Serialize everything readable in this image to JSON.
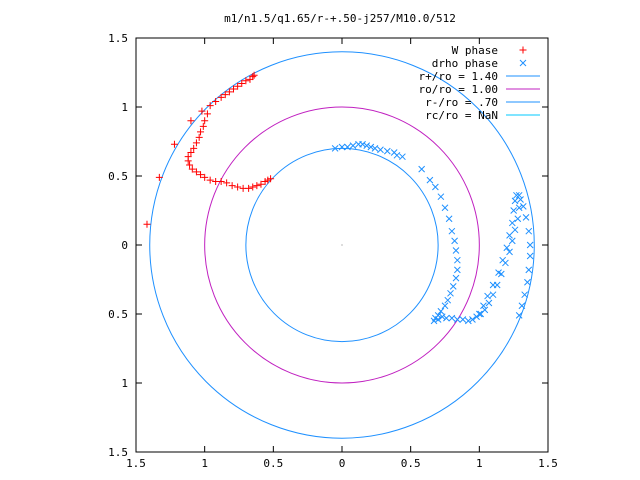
{
  "chart_data": {
    "type": "scatter",
    "title": "m1/n1.5/q1.65/r-+.50-j257/M10.0/512",
    "xlim": [
      -1.5,
      1.5
    ],
    "ylim": [
      -1.5,
      1.5
    ],
    "x_ticks": [
      -1.5,
      -1,
      -0.5,
      0,
      0.5,
      1,
      1.5
    ],
    "y_ticks": [
      -1.5,
      -1,
      -0.5,
      0,
      0.5,
      1,
      1.5
    ],
    "x_tick_labels": [
      "1.5",
      "1",
      "0.5",
      "0",
      "0.5",
      "1",
      "1.5"
    ],
    "y_tick_labels": [
      "1.5",
      "1",
      "0.5",
      "0",
      "0.5",
      "1",
      "1.5"
    ],
    "grid": false,
    "legend_position": "top-right",
    "legend": [
      {
        "label": "W phase",
        "marker": "+",
        "color": "#ff0000"
      },
      {
        "label": "drho phase",
        "marker": "x",
        "color": "#1e90ff"
      },
      {
        "label": "r+/ro = 1.40",
        "marker": "line",
        "color": "#1e90ff"
      },
      {
        "label": "ro/ro = 1.00",
        "marker": "line",
        "color": "#c020c0"
      },
      {
        "label": "r-/ro =  .70",
        "marker": "line",
        "color": "#1e90ff"
      },
      {
        "label": "rc/ro = NaN",
        "marker": "line",
        "color": "#00c8ff"
      }
    ],
    "circles": [
      {
        "name": "r+/ro = 1.40",
        "radius": 1.4,
        "color": "#1e90ff"
      },
      {
        "name": "ro/ro = 1.00",
        "radius": 1.0,
        "color": "#c020c0"
      },
      {
        "name": "r-/ro =  .70",
        "radius": 0.7,
        "color": "#1e90ff"
      }
    ],
    "series": [
      {
        "name": "W phase",
        "marker": "+",
        "color": "#ff0000",
        "points": [
          [
            -1.42,
            0.15
          ],
          [
            -1.33,
            0.49
          ],
          [
            -1.22,
            0.73
          ],
          [
            -1.1,
            0.9
          ],
          [
            -1.02,
            0.97
          ],
          [
            -0.96,
            1.01
          ],
          [
            -0.92,
            1.04
          ],
          [
            -0.88,
            1.07
          ],
          [
            -0.85,
            1.09
          ],
          [
            -0.82,
            1.11
          ],
          [
            -0.79,
            1.13
          ],
          [
            -0.76,
            1.15
          ],
          [
            -0.73,
            1.17
          ],
          [
            -0.7,
            1.19
          ],
          [
            -0.67,
            1.2
          ],
          [
            -0.65,
            1.22
          ],
          [
            -0.64,
            1.23
          ],
          [
            -0.98,
            0.95
          ],
          [
            -1.0,
            0.9
          ],
          [
            -1.01,
            0.86
          ],
          [
            -1.03,
            0.82
          ],
          [
            -1.04,
            0.78
          ],
          [
            -1.06,
            0.74
          ],
          [
            -1.08,
            0.7
          ],
          [
            -1.1,
            0.67
          ],
          [
            -1.12,
            0.64
          ],
          [
            -1.12,
            0.61
          ],
          [
            -1.11,
            0.58
          ],
          [
            -1.09,
            0.55
          ],
          [
            -1.06,
            0.53
          ],
          [
            -1.03,
            0.51
          ],
          [
            -1.0,
            0.49
          ],
          [
            -0.96,
            0.47
          ],
          [
            -0.92,
            0.46
          ],
          [
            -0.88,
            0.46
          ],
          [
            -0.84,
            0.45
          ],
          [
            -0.8,
            0.43
          ],
          [
            -0.76,
            0.42
          ],
          [
            -0.72,
            0.41
          ],
          [
            -0.68,
            0.41
          ],
          [
            -0.65,
            0.42
          ],
          [
            -0.62,
            0.43
          ],
          [
            -0.59,
            0.44
          ],
          [
            -0.56,
            0.46
          ],
          [
            -0.54,
            0.47
          ],
          [
            -0.52,
            0.48
          ]
        ]
      },
      {
        "name": "drho phase",
        "marker": "x",
        "color": "#1e90ff",
        "points": [
          [
            -0.05,
            0.7
          ],
          [
            0.0,
            0.71
          ],
          [
            0.04,
            0.71
          ],
          [
            0.08,
            0.72
          ],
          [
            0.12,
            0.73
          ],
          [
            0.15,
            0.73
          ],
          [
            0.18,
            0.72
          ],
          [
            0.21,
            0.71
          ],
          [
            0.24,
            0.7
          ],
          [
            0.28,
            0.69
          ],
          [
            0.33,
            0.68
          ],
          [
            0.38,
            0.67
          ],
          [
            0.4,
            0.65
          ],
          [
            0.44,
            0.64
          ],
          [
            0.58,
            0.55
          ],
          [
            0.64,
            0.47
          ],
          [
            0.68,
            0.42
          ],
          [
            0.72,
            0.35
          ],
          [
            0.75,
            0.27
          ],
          [
            0.78,
            0.19
          ],
          [
            0.8,
            0.1
          ],
          [
            0.82,
            0.03
          ],
          [
            0.83,
            -0.04
          ],
          [
            0.84,
            -0.11
          ],
          [
            0.84,
            -0.18
          ],
          [
            0.83,
            -0.24
          ],
          [
            0.81,
            -0.3
          ],
          [
            0.79,
            -0.35
          ],
          [
            0.77,
            -0.4
          ],
          [
            0.75,
            -0.44
          ],
          [
            0.72,
            -0.48
          ],
          [
            0.7,
            -0.51
          ],
          [
            0.68,
            -0.53
          ],
          [
            0.67,
            -0.55
          ],
          [
            0.7,
            -0.54
          ],
          [
            0.73,
            -0.52
          ],
          [
            0.76,
            -0.53
          ],
          [
            0.8,
            -0.53
          ],
          [
            0.84,
            -0.54
          ],
          [
            0.88,
            -0.54
          ],
          [
            0.92,
            -0.55
          ],
          [
            0.95,
            -0.54
          ],
          [
            0.98,
            -0.52
          ],
          [
            1.01,
            -0.5
          ],
          [
            1.04,
            -0.47
          ],
          [
            1.07,
            -0.42
          ],
          [
            1.1,
            -0.36
          ],
          [
            1.13,
            -0.29
          ],
          [
            1.16,
            -0.21
          ],
          [
            1.19,
            -0.13
          ],
          [
            1.22,
            -0.05
          ],
          [
            1.24,
            0.03
          ],
          [
            1.26,
            0.11
          ],
          [
            1.28,
            0.19
          ],
          [
            1.29,
            0.27
          ],
          [
            1.3,
            0.33
          ],
          [
            1.29,
            0.36
          ],
          [
            1.27,
            0.36
          ],
          [
            1.26,
            0.32
          ],
          [
            1.25,
            0.25
          ],
          [
            1.24,
            0.16
          ],
          [
            1.22,
            0.07
          ],
          [
            1.2,
            -0.02
          ],
          [
            1.17,
            -0.11
          ],
          [
            1.14,
            -0.2
          ],
          [
            1.1,
            -0.29
          ],
          [
            1.06,
            -0.37
          ],
          [
            1.03,
            -0.44
          ],
          [
            1.0,
            -0.5
          ],
          [
            1.32,
            0.28
          ],
          [
            1.34,
            0.2
          ],
          [
            1.36,
            0.1
          ],
          [
            1.37,
            0.0
          ],
          [
            1.37,
            -0.08
          ],
          [
            1.36,
            -0.18
          ],
          [
            1.35,
            -0.27
          ],
          [
            1.33,
            -0.36
          ],
          [
            1.31,
            -0.44
          ],
          [
            1.29,
            -0.51
          ]
        ]
      }
    ]
  }
}
